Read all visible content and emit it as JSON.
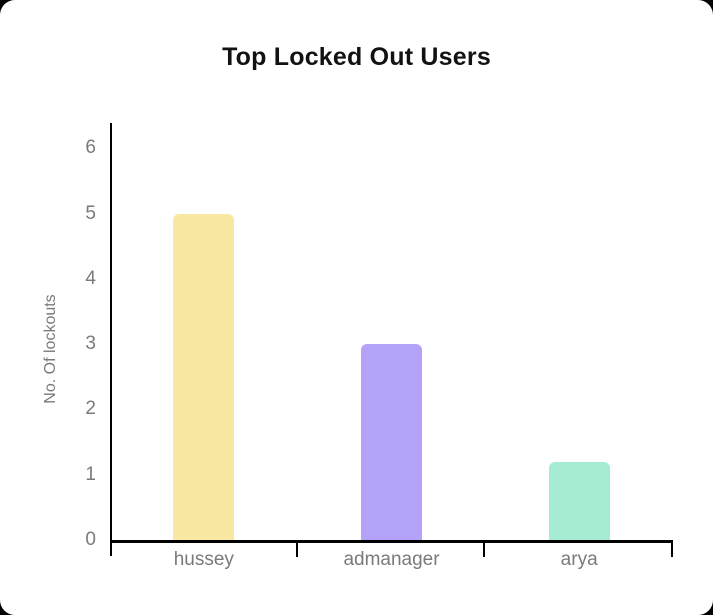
{
  "page": {
    "background_color": "#000000",
    "card_color": "#ffffff"
  },
  "chart_data": {
    "type": "bar",
    "title": "Top Locked Out Users",
    "xlabel": "",
    "ylabel": "No. Of lockouts",
    "categories": [
      "hussey",
      "admanager",
      "arya"
    ],
    "values": [
      5,
      3,
      1.2
    ],
    "bar_colors": [
      "#F9E8A2",
      "#B4A1F8",
      "#A6ECD2"
    ],
    "yticks": [
      0,
      1,
      2,
      3,
      4,
      5,
      6
    ],
    "ylim": [
      0,
      6.4
    ],
    "grid": false,
    "legend": false,
    "axis_color": "#000000",
    "tick_text_color": "#7a7a7a",
    "title_color": "#121212"
  }
}
